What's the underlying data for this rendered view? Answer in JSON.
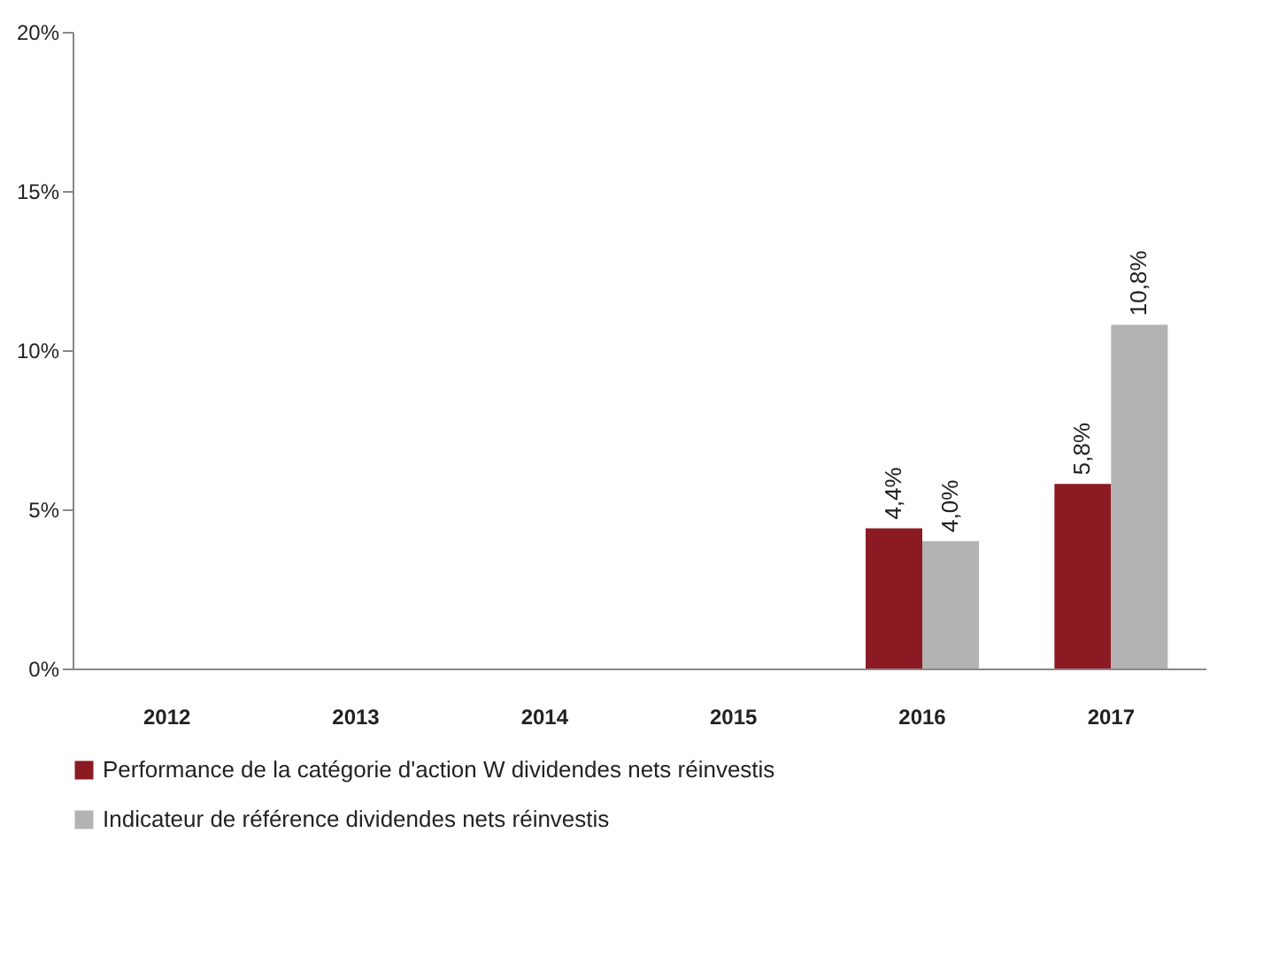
{
  "chart_data": {
    "type": "bar",
    "categories": [
      "2012",
      "2013",
      "2014",
      "2015",
      "2016",
      "2017"
    ],
    "series": [
      {
        "name": "Performance de la catégorie d'action  W dividendes nets réinvestis",
        "color": "#8b1a22",
        "values": [
          null,
          null,
          null,
          null,
          4.4,
          5.8
        ],
        "value_labels": [
          null,
          null,
          null,
          null,
          "4,4%",
          "5,8%"
        ]
      },
      {
        "name": "Indicateur de référence dividendes nets réinvestis",
        "color": "#b3b3b3",
        "values": [
          null,
          null,
          null,
          null,
          4.0,
          10.8
        ],
        "value_labels": [
          null,
          null,
          null,
          null,
          "4,0%",
          "10,8%"
        ]
      }
    ],
    "ylim": [
      0,
      20
    ],
    "yticks": [
      {
        "value": 0,
        "label": "0%"
      },
      {
        "value": 5,
        "label": "5%"
      },
      {
        "value": 10,
        "label": "10%"
      },
      {
        "value": 15,
        "label": "15%"
      },
      {
        "value": 20,
        "label": "20%"
      }
    ],
    "grid": false,
    "legend": "bottom"
  }
}
